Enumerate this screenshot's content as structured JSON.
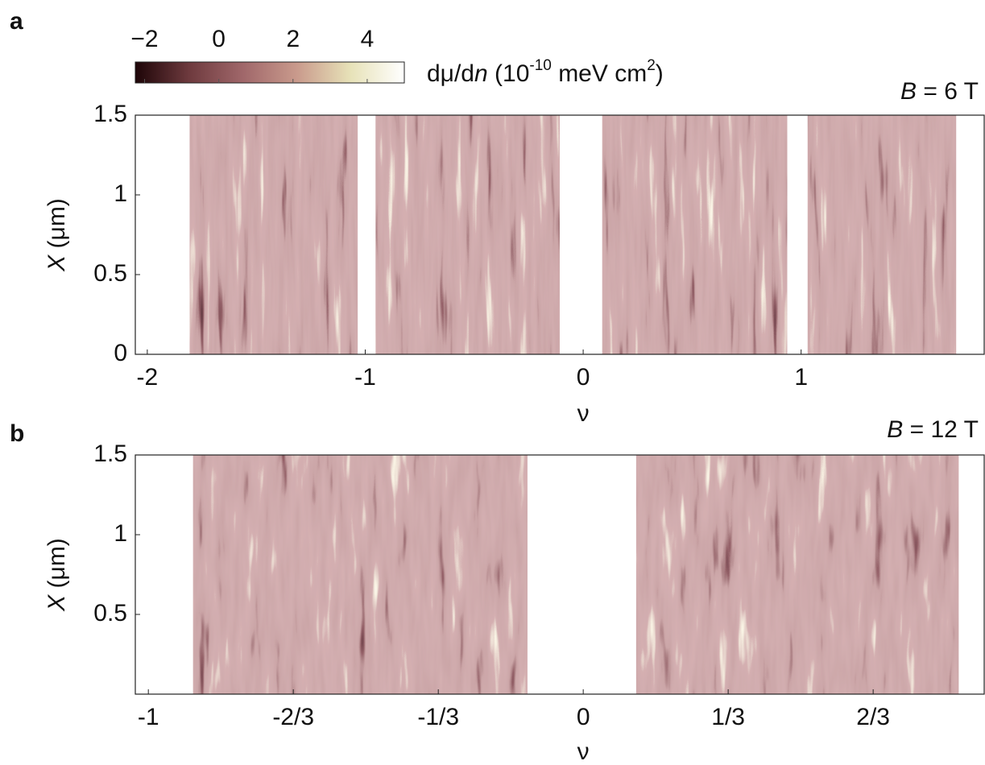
{
  "chart_data": [
    {
      "type": "heatmap",
      "panel_label": "a",
      "annotation": {
        "symbol": "B",
        "text": " = 6 T"
      },
      "x_label": "ν",
      "y_label": {
        "symbol": "X",
        "text": " (μm)"
      },
      "xlim": [
        -2.055,
        1.84
      ],
      "xticks": [
        -2,
        -1,
        0,
        1
      ],
      "ylim": [
        0,
        1.5
      ],
      "yticks": [
        0,
        0.5,
        1,
        1.5
      ],
      "colorbar": {
        "lim": [
          -2.25,
          5
        ],
        "ticks": [
          {
            "value": -2,
            "label": "−2"
          },
          0,
          2,
          4
        ],
        "label": [
          "dμ/d",
          "n",
          " (10",
          "-10",
          " meV cm",
          "2",
          ")"
        ],
        "colors": [
          "#1e0508",
          "#6e3a3e",
          "#a0676a",
          "#c99a8c",
          "#e7e2b8",
          "#ffffff"
        ]
      }
    },
    {
      "type": "heatmap",
      "panel_label": "b",
      "annotation": {
        "symbol": "B",
        "text": " = 12 T"
      },
      "x_label": "ν",
      "y_label": {
        "symbol": "X",
        "text": " (μm)"
      },
      "xlim": [
        -1.03,
        0.922
      ],
      "xticks": [
        -1,
        {
          "value": -0.6667,
          "label": "-2/3"
        },
        {
          "value": -0.3333,
          "label": "-1/3"
        },
        0,
        {
          "value": 0.3333,
          "label": "1/3"
        },
        {
          "value": 0.6667,
          "label": "2/3"
        }
      ],
      "ylim": [
        0,
        1.5
      ],
      "yticks": [
        0.5,
        1,
        1.5
      ]
    }
  ]
}
